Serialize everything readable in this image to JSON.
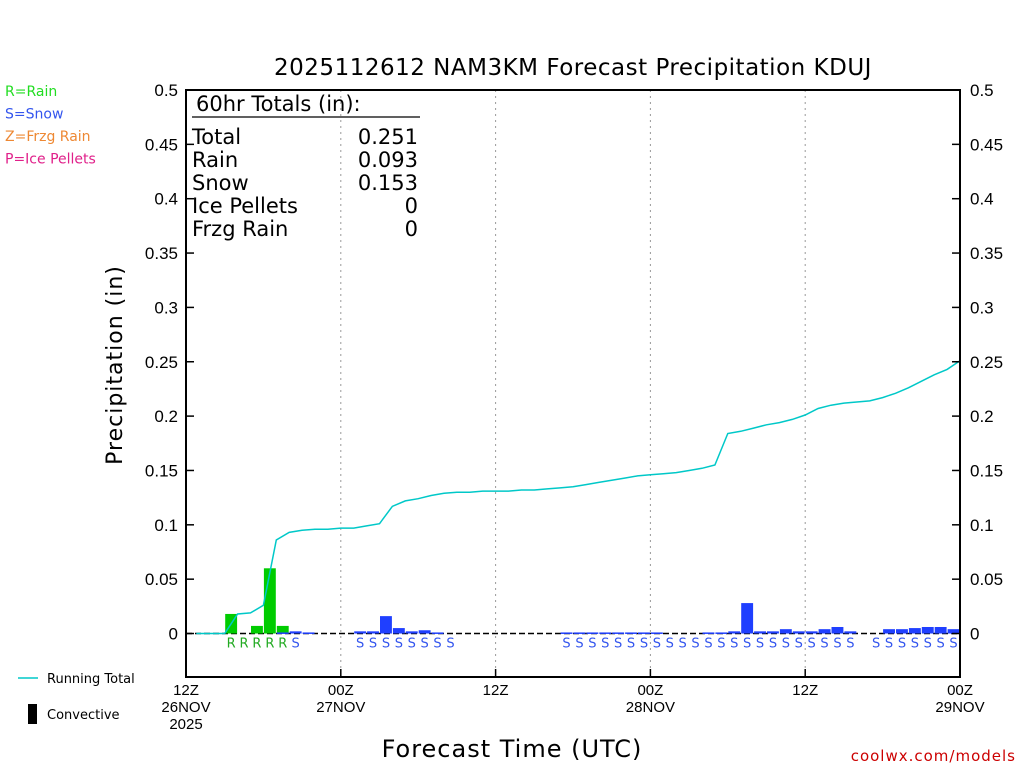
{
  "chart_data": {
    "type": "bar",
    "title": "2025112612 NAM3KM Forecast Precipitation KDUJ",
    "ylabel": "Precipitation (in)",
    "xlabel": "Forecast Time (UTC)",
    "ylim": [
      -0.04,
      0.5
    ],
    "yticks": [
      "0",
      "0.05",
      "0.1",
      "0.15",
      "0.2",
      "0.25",
      "0.3",
      "0.35",
      "0.4",
      "0.45",
      "0.5"
    ],
    "ytick_values": [
      0,
      0.05,
      0.1,
      0.15,
      0.2,
      0.25,
      0.3,
      0.35,
      0.4,
      0.45,
      0.5
    ],
    "xlim_hours": [
      0,
      60
    ],
    "xticks": [
      {
        "hour": 0,
        "line1": "12Z",
        "line2": "26NOV",
        "line3": "2025"
      },
      {
        "hour": 12,
        "line1": "00Z",
        "line2": "27NOV",
        "line3": ""
      },
      {
        "hour": 24,
        "line1": "12Z",
        "line2": "",
        "line3": ""
      },
      {
        "hour": 36,
        "line1": "00Z",
        "line2": "28NOV",
        "line3": ""
      },
      {
        "hour": 48,
        "line1": "12Z",
        "line2": "",
        "line3": ""
      },
      {
        "hour": 60,
        "line1": "00Z",
        "line2": "29NOV",
        "line3": ""
      }
    ],
    "hours": [
      1,
      2,
      3,
      4,
      5,
      6,
      7,
      8,
      9,
      10,
      11,
      12,
      13,
      14,
      15,
      16,
      17,
      18,
      19,
      20,
      21,
      22,
      23,
      24,
      25,
      26,
      27,
      28,
      29,
      30,
      31,
      32,
      33,
      34,
      35,
      36,
      37,
      38,
      39,
      40,
      41,
      42,
      43,
      44,
      45,
      46,
      47,
      48,
      49,
      50,
      51,
      52,
      53,
      54,
      55,
      56,
      57,
      58,
      59,
      60
    ],
    "series": [
      {
        "name": "Rain",
        "color": "#00cc00",
        "values": [
          0,
          0,
          0,
          0.018,
          0,
          0.007,
          0.06,
          0.007,
          0,
          0,
          0,
          0,
          0,
          0,
          0,
          0,
          0,
          0,
          0,
          0,
          0,
          0,
          0,
          0,
          0,
          0,
          0,
          0,
          0,
          0,
          0,
          0,
          0,
          0,
          0,
          0,
          0,
          0,
          0,
          0,
          0,
          0,
          0,
          0,
          0,
          0,
          0,
          0,
          0,
          0,
          0,
          0,
          0,
          0,
          0,
          0,
          0,
          0,
          0,
          0
        ]
      },
      {
        "name": "Snow",
        "color": "#1f3fff",
        "values": [
          0,
          0,
          0,
          0,
          0,
          0,
          0,
          0.001,
          0.002,
          0.001,
          0,
          0,
          0,
          0.002,
          0.002,
          0.016,
          0.005,
          0.002,
          0.003,
          0.001,
          0,
          0,
          0,
          0,
          0,
          0,
          0,
          0,
          0,
          0.001,
          0.001,
          0.001,
          0.001,
          0.001,
          0.001,
          0.001,
          0.001,
          0,
          0,
          0,
          0.001,
          0.001,
          0.002,
          0.028,
          0.002,
          0.002,
          0.004,
          0.002,
          0.002,
          0.004,
          0.006,
          0.002,
          0,
          0,
          0.004,
          0.004,
          0.005,
          0.006,
          0.006,
          0.004
        ]
      },
      {
        "name": "Running Total",
        "color": "#00c8c8",
        "values": [
          0,
          0,
          0,
          0.018,
          0.019,
          0.026,
          0.086,
          0.093,
          0.095,
          0.096,
          0.096,
          0.097,
          0.097,
          0.099,
          0.101,
          0.117,
          0.122,
          0.124,
          0.127,
          0.129,
          0.13,
          0.13,
          0.131,
          0.131,
          0.131,
          0.132,
          0.132,
          0.133,
          0.134,
          0.135,
          0.137,
          0.139,
          0.141,
          0.143,
          0.145,
          0.146,
          0.147,
          0.148,
          0.15,
          0.152,
          0.155,
          0.184,
          0.186,
          0.189,
          0.192,
          0.194,
          0.197,
          0.201,
          0.207,
          0.21,
          0.212,
          0.213,
          0.214,
          0.217,
          0.221,
          0.226,
          0.232,
          0.238,
          0.243,
          0.251
        ]
      }
    ],
    "type_codes": [
      "",
      "",
      "",
      "R",
      "R",
      "R",
      "R",
      "R",
      "S",
      "",
      "",
      "",
      "",
      "S",
      "S",
      "S",
      "S",
      "S",
      "S",
      "S",
      "S",
      "",
      "",
      "",
      "",
      "",
      "",
      "",
      "",
      "S",
      "S",
      "S",
      "S",
      "S",
      "S",
      "S",
      "S",
      "S",
      "S",
      "S",
      "S",
      "S",
      "S",
      "S",
      "S",
      "S",
      "S",
      "S",
      "S",
      "S",
      "S",
      "S",
      "",
      "S",
      "S",
      "S",
      "S",
      "S",
      "S",
      "S"
    ],
    "totals_box": {
      "header": "60hr Totals (in):",
      "rows": [
        {
          "label": "Total",
          "value": "0.251"
        },
        {
          "label": "Rain",
          "value": "0.093"
        },
        {
          "label": "Snow",
          "value": "0.153"
        },
        {
          "label": "Ice Pellets",
          "value": "0"
        },
        {
          "label": "Frzg Rain",
          "value": "0"
        }
      ]
    },
    "type_legend": [
      {
        "text": "R=Rain",
        "color": "#22dd22"
      },
      {
        "text": "S=Snow",
        "color": "#3355ee"
      },
      {
        "text": "Z=Frzg Rain",
        "color": "#ee8833"
      },
      {
        "text": "P=Ice Pellets",
        "color": "#e0208a"
      }
    ],
    "series_legend": [
      {
        "text": "Running Total",
        "color": "#00c8c8",
        "kind": "line"
      },
      {
        "text": "Convective",
        "color": "#000000",
        "kind": "bar"
      }
    ],
    "code_colors": {
      "R": "#22aa22",
      "S": "#3355ee"
    }
  },
  "footer": {
    "site": "coolwx.com/models"
  }
}
